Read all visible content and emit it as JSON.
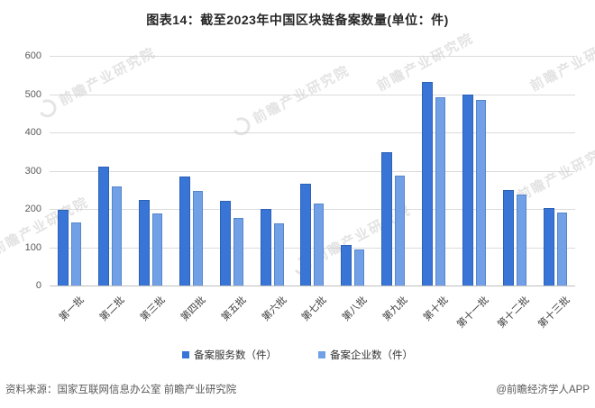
{
  "title": "图表14：截至2023年中国区块链备案数量(单位：件)",
  "watermark": {
    "text": "前瞻产业研究院"
  },
  "footer": {
    "source": "资料来源：国家互联网信息办公室 前瞻产业研究院",
    "credit": "@前瞻经济学人APP"
  },
  "colors": {
    "series1": "#3875D7",
    "series1_border": "#2E61B4",
    "series2": "#72A0E6",
    "series2_border": "#5585CC",
    "gridline": "#DBDBDB",
    "axis_text": "#595959",
    "title_text": "#262626",
    "watermark": "#CDCDCD"
  },
  "chart_data": {
    "type": "bar",
    "title": "图表14：截至2023年中国区块链备案数量(单位：件)",
    "categories": [
      "第一批",
      "第二批",
      "第三批",
      "第四批",
      "第五批",
      "第六批",
      "第七批",
      "第八批",
      "第九批",
      "第十批",
      "第十一批",
      "第十二批",
      "第十三批"
    ],
    "series": [
      {
        "name": "备案服务数（件）",
        "values": [
          197,
          310,
          223,
          285,
          222,
          200,
          265,
          105,
          348,
          532,
          500,
          250,
          202
        ]
      },
      {
        "name": "备案企业数（件）",
        "values": [
          164,
          258,
          189,
          247,
          177,
          163,
          213,
          94,
          288,
          491,
          485,
          237,
          190
        ]
      }
    ],
    "xlabel": "",
    "ylabel": "",
    "ylim": [
      0,
      600
    ],
    "ytick_interval": 100,
    "grid": true,
    "legend_position": "bottom"
  }
}
